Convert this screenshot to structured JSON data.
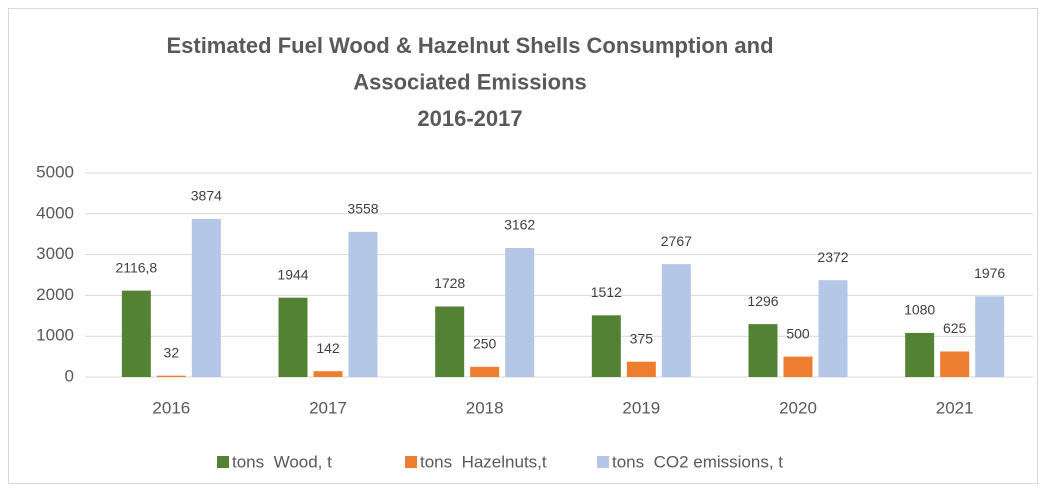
{
  "chart_data": {
    "type": "bar",
    "title": [
      "Estimated Fuel Wood & Hazelnut Shells Consumption and",
      "Associated Emissions",
      "2016-2017"
    ],
    "categories": [
      "2016",
      "2017",
      "2018",
      "2019",
      "2020",
      "2021"
    ],
    "series": [
      {
        "name": "tons  Wood, t",
        "color": "#548235",
        "values": [
          2116.8,
          1944,
          1728,
          1512,
          1296,
          1080
        ],
        "value_labels": [
          "2116,8",
          "1944",
          "1728",
          "1512",
          "1296",
          "1080"
        ]
      },
      {
        "name": "tons  Hazelnuts,t",
        "color": "#ed7d31",
        "values": [
          32,
          142,
          250,
          375,
          500,
          625
        ]
      },
      {
        "name": "tons  CO2 emissions, t",
        "color": "#b4c7e7",
        "values": [
          3874,
          3558,
          3162,
          2767,
          2372,
          1976
        ]
      }
    ],
    "ylim": [
      0,
      5000
    ],
    "yticks": [
      0,
      1000,
      2000,
      3000,
      4000,
      5000
    ],
    "grid": true,
    "legend": "bottom"
  }
}
